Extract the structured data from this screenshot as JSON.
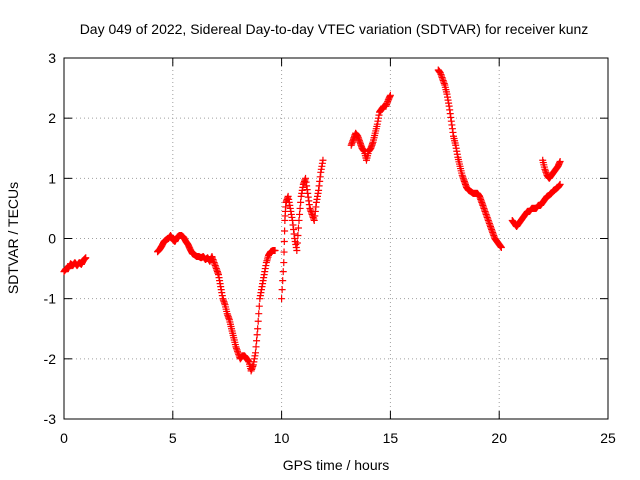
{
  "chart_data": {
    "type": "scatter",
    "title": "Day 049 of 2022, Sidereal Day-to-day VTEC variation (SDTVAR) for receiver kunz",
    "xlabel": "GPS time / hours",
    "ylabel": "SDTVAR / TECUs",
    "xlim": [
      0,
      25
    ],
    "ylim": [
      -3,
      3
    ],
    "xticks": [
      "0",
      "5",
      "10",
      "15",
      "20",
      "25"
    ],
    "yticks": [
      "-3",
      "-2",
      "-1",
      "0",
      "1",
      "2",
      "3"
    ],
    "grid": true,
    "marker": "plus",
    "series_color": "#ff0000",
    "segments": [
      [
        [
          0.0,
          -0.55
        ],
        [
          0.1,
          -0.5
        ],
        [
          0.2,
          -0.5
        ],
        [
          0.3,
          -0.42
        ],
        [
          0.4,
          -0.45
        ],
        [
          0.5,
          -0.4
        ],
        [
          0.6,
          -0.45
        ],
        [
          0.7,
          -0.4
        ],
        [
          0.8,
          -0.43
        ],
        [
          0.9,
          -0.36
        ],
        [
          1.0,
          -0.32
        ]
      ],
      [
        [
          4.3,
          -0.22
        ],
        [
          4.4,
          -0.18
        ],
        [
          4.5,
          -0.12
        ],
        [
          4.6,
          -0.05
        ],
        [
          4.7,
          -0.02
        ],
        [
          4.8,
          0.0
        ],
        [
          4.9,
          0.05
        ],
        [
          5.0,
          -0.02
        ],
        [
          5.1,
          -0.05
        ],
        [
          5.2,
          0.02
        ],
        [
          5.3,
          0.05
        ],
        [
          5.4,
          0.05
        ],
        [
          5.5,
          0.02
        ],
        [
          5.6,
          -0.05
        ],
        [
          5.7,
          -0.1
        ],
        [
          5.8,
          -0.18
        ],
        [
          5.9,
          -0.25
        ],
        [
          6.0,
          -0.27
        ],
        [
          6.1,
          -0.3
        ],
        [
          6.2,
          -0.3
        ],
        [
          6.3,
          -0.32
        ],
        [
          6.4,
          -0.3
        ],
        [
          6.5,
          -0.35
        ],
        [
          6.6,
          -0.32
        ],
        [
          6.7,
          -0.38
        ],
        [
          6.8,
          -0.3
        ],
        [
          6.9,
          -0.4
        ],
        [
          7.0,
          -0.5
        ],
        [
          7.1,
          -0.6
        ],
        [
          7.2,
          -0.8
        ],
        [
          7.3,
          -1.0
        ],
        [
          7.4,
          -1.1
        ],
        [
          7.5,
          -1.25
        ],
        [
          7.6,
          -1.35
        ],
        [
          7.7,
          -1.5
        ],
        [
          7.8,
          -1.65
        ],
        [
          7.9,
          -1.8
        ],
        [
          8.0,
          -1.9
        ],
        [
          8.1,
          -2.0
        ],
        [
          8.2,
          -1.95
        ],
        [
          8.3,
          -1.95
        ],
        [
          8.4,
          -2.0
        ],
        [
          8.5,
          -2.05
        ],
        [
          8.6,
          -2.2
        ],
        [
          8.7,
          -2.1
        ],
        [
          8.8,
          -1.9
        ],
        [
          8.9,
          -1.5
        ],
        [
          9.0,
          -1.0
        ],
        [
          9.1,
          -0.8
        ],
        [
          9.2,
          -0.6
        ],
        [
          9.3,
          -0.4
        ],
        [
          9.4,
          -0.28
        ],
        [
          9.5,
          -0.22
        ],
        [
          9.6,
          -0.2
        ],
        [
          9.7,
          -0.2
        ]
      ],
      [
        [
          10.0,
          -1.0
        ],
        [
          10.1,
          -0.4
        ],
        [
          10.15,
          0.3
        ],
        [
          10.2,
          0.6
        ],
        [
          10.3,
          0.7
        ],
        [
          10.4,
          0.5
        ],
        [
          10.5,
          0.3
        ],
        [
          10.6,
          0.0
        ],
        [
          10.7,
          -0.2
        ],
        [
          10.8,
          0.3
        ],
        [
          10.9,
          0.7
        ],
        [
          11.0,
          0.9
        ],
        [
          11.1,
          1.0
        ],
        [
          11.2,
          0.75
        ],
        [
          11.3,
          0.5
        ],
        [
          11.4,
          0.4
        ],
        [
          11.5,
          0.3
        ],
        [
          11.6,
          0.6
        ],
        [
          11.7,
          0.8
        ],
        [
          11.8,
          1.1
        ],
        [
          11.9,
          1.3
        ]
      ],
      [
        [
          13.2,
          1.55
        ],
        [
          13.3,
          1.65
        ],
        [
          13.4,
          1.75
        ],
        [
          13.5,
          1.7
        ],
        [
          13.6,
          1.6
        ],
        [
          13.7,
          1.5
        ],
        [
          13.8,
          1.45
        ],
        [
          13.9,
          1.3
        ],
        [
          14.0,
          1.45
        ],
        [
          14.1,
          1.5
        ],
        [
          14.2,
          1.6
        ],
        [
          14.3,
          1.75
        ],
        [
          14.4,
          1.9
        ],
        [
          14.5,
          2.1
        ],
        [
          14.6,
          2.15
        ],
        [
          14.7,
          2.2
        ],
        [
          14.8,
          2.2
        ],
        [
          14.9,
          2.3
        ],
        [
          15.0,
          2.38
        ]
      ],
      [
        [
          17.2,
          2.8
        ],
        [
          17.3,
          2.75
        ],
        [
          17.4,
          2.65
        ],
        [
          17.5,
          2.55
        ],
        [
          17.6,
          2.4
        ],
        [
          17.7,
          2.2
        ],
        [
          17.8,
          1.95
        ],
        [
          17.9,
          1.7
        ],
        [
          18.0,
          1.55
        ],
        [
          18.1,
          1.35
        ],
        [
          18.2,
          1.2
        ],
        [
          18.3,
          1.05
        ],
        [
          18.4,
          0.95
        ],
        [
          18.5,
          0.85
        ],
        [
          18.6,
          0.8
        ],
        [
          18.7,
          0.78
        ],
        [
          18.8,
          0.75
        ],
        [
          18.9,
          0.75
        ],
        [
          19.0,
          0.75
        ],
        [
          19.1,
          0.7
        ],
        [
          19.2,
          0.6
        ],
        [
          19.3,
          0.5
        ],
        [
          19.4,
          0.4
        ],
        [
          19.5,
          0.3
        ],
        [
          19.6,
          0.2
        ],
        [
          19.7,
          0.1
        ],
        [
          19.8,
          0.0
        ],
        [
          19.9,
          -0.05
        ],
        [
          20.0,
          -0.1
        ],
        [
          20.1,
          -0.15
        ]
      ],
      [
        [
          20.6,
          0.3
        ],
        [
          20.7,
          0.25
        ],
        [
          20.8,
          0.2
        ],
        [
          20.9,
          0.25
        ],
        [
          21.0,
          0.3
        ],
        [
          21.1,
          0.35
        ],
        [
          21.2,
          0.4
        ],
        [
          21.3,
          0.45
        ],
        [
          21.4,
          0.45
        ],
        [
          21.5,
          0.5
        ],
        [
          21.6,
          0.5
        ],
        [
          21.7,
          0.5
        ],
        [
          21.8,
          0.55
        ],
        [
          21.9,
          0.55
        ],
        [
          22.0,
          0.6
        ],
        [
          22.1,
          0.65
        ],
        [
          22.2,
          0.7
        ],
        [
          22.3,
          0.72
        ],
        [
          22.4,
          0.75
        ],
        [
          22.5,
          0.8
        ],
        [
          22.6,
          0.82
        ],
        [
          22.7,
          0.85
        ],
        [
          22.8,
          0.9
        ]
      ],
      [
        [
          22.0,
          1.3
        ],
        [
          22.1,
          1.15
        ],
        [
          22.2,
          1.05
        ],
        [
          22.3,
          1.0
        ],
        [
          22.4,
          1.05
        ],
        [
          22.5,
          1.1
        ],
        [
          22.6,
          1.15
        ],
        [
          22.7,
          1.2
        ],
        [
          22.8,
          1.28
        ]
      ]
    ]
  }
}
